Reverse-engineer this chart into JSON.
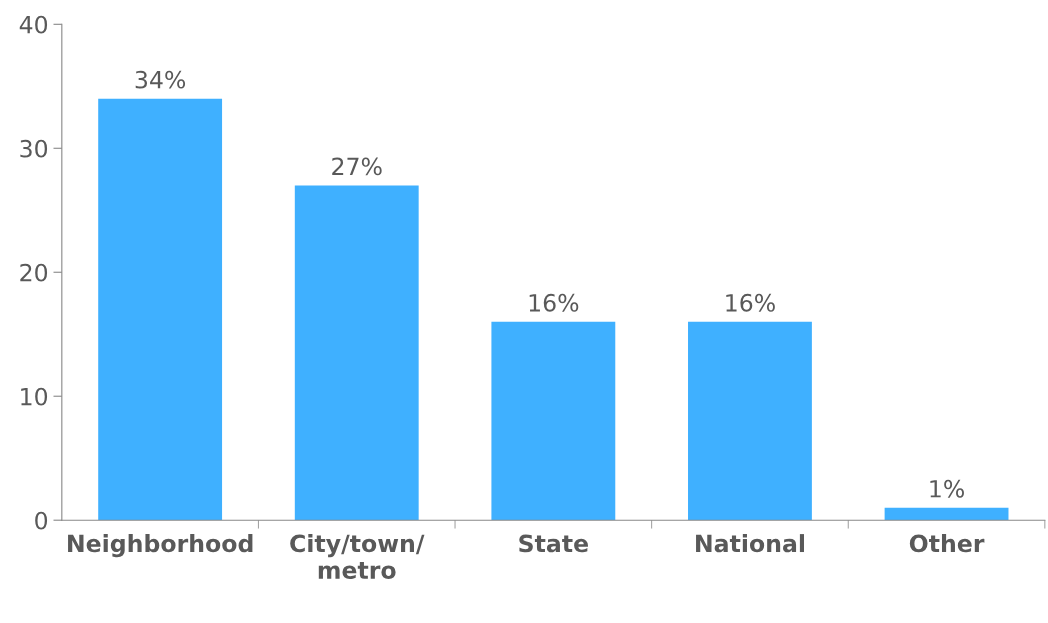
{
  "chart_data": {
    "type": "bar",
    "categories": [
      "Neighborhood",
      "City/town/\nmetro",
      "State",
      "National",
      "Other"
    ],
    "values": [
      34,
      27,
      16,
      16,
      1
    ],
    "value_labels": [
      "34%",
      "27%",
      "16%",
      "16%",
      "1%"
    ],
    "color": "#3fb0ff",
    "ylim": [
      0,
      40
    ],
    "yticks": [
      0,
      10,
      20,
      30,
      40
    ],
    "grid": false,
    "legend": false
  }
}
